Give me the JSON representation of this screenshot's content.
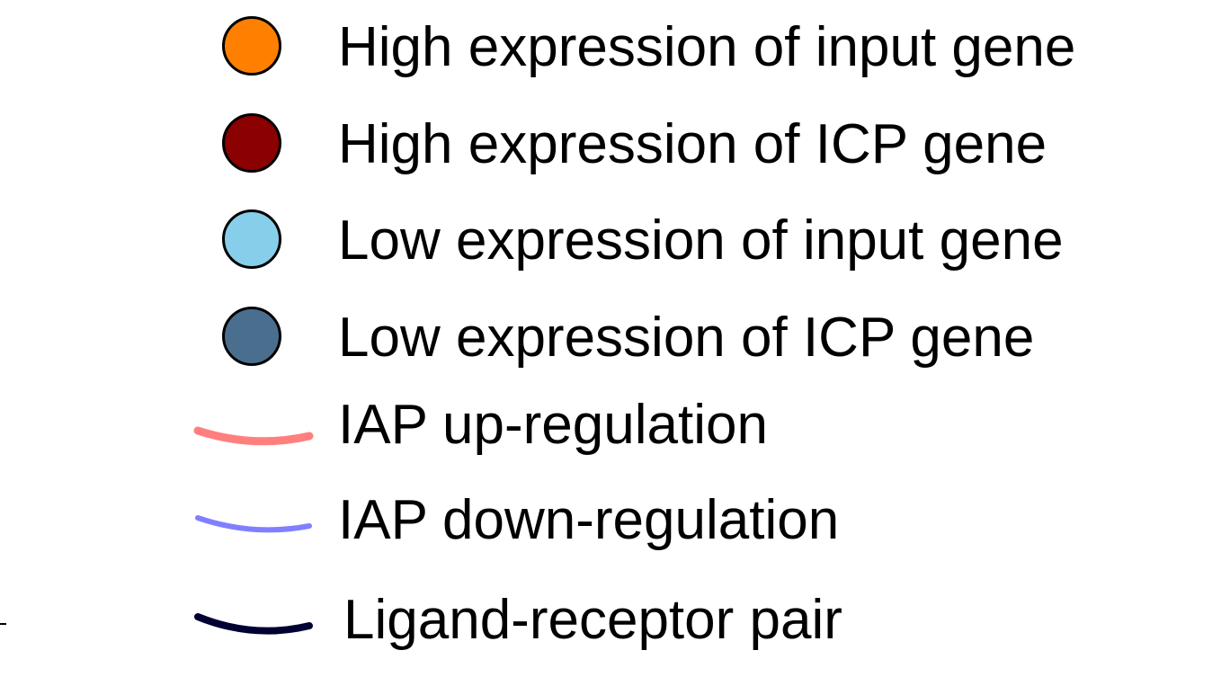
{
  "legend": {
    "items": [
      {
        "kind": "circle",
        "color": "#ff8000",
        "label": "High expression of input gene"
      },
      {
        "kind": "circle",
        "color": "#8b0000",
        "label": "High expression of ICP gene"
      },
      {
        "kind": "circle",
        "color": "#87ceeb",
        "label": "Low expression of input gene"
      },
      {
        "kind": "circle",
        "color": "#4a6f8e",
        "label": "Low expression of ICP gene"
      },
      {
        "kind": "curve",
        "color": "#ff7f7f",
        "label": "IAP up-regulation"
      },
      {
        "kind": "curve",
        "color": "#8080ff",
        "label": "IAP down-regulation"
      },
      {
        "kind": "curve",
        "color": "#000033",
        "label": "Ligand-receptor pair"
      }
    ]
  }
}
